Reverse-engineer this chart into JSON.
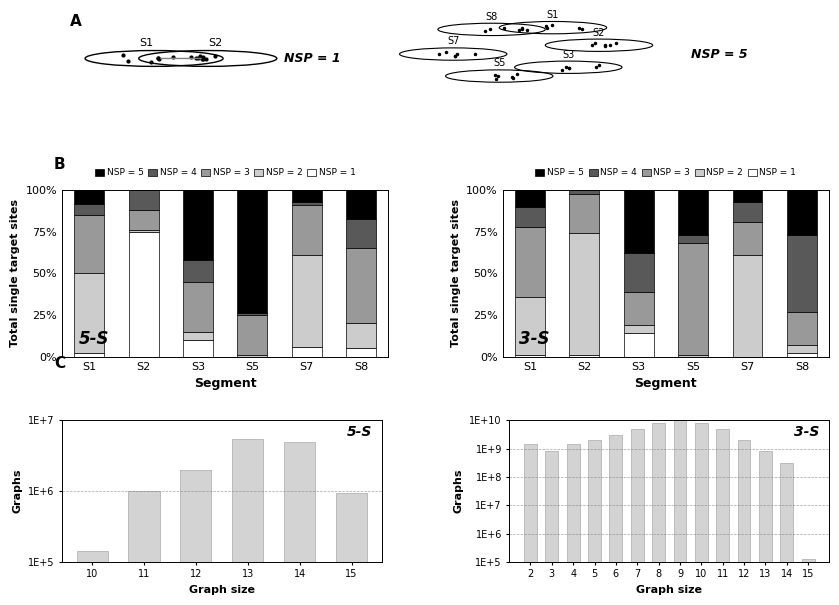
{
  "bar_5s": {
    "segments": [
      "S1",
      "S2",
      "S3",
      "S5",
      "S7",
      "S8"
    ],
    "nsp5": [
      0.08,
      0.0,
      0.42,
      0.74,
      0.07,
      0.17
    ],
    "nsp4": [
      0.07,
      0.12,
      0.13,
      0.01,
      0.02,
      0.18
    ],
    "nsp3": [
      0.35,
      0.12,
      0.3,
      0.24,
      0.3,
      0.45
    ],
    "nsp2": [
      0.48,
      0.01,
      0.05,
      0.01,
      0.55,
      0.15
    ],
    "nsp1": [
      0.02,
      0.75,
      0.1,
      0.0,
      0.06,
      0.05
    ],
    "label": "5-S"
  },
  "bar_3s": {
    "segments": [
      "S1",
      "S2",
      "S3",
      "S5",
      "S7",
      "S8"
    ],
    "nsp5": [
      0.1,
      0.0,
      0.38,
      0.27,
      0.07,
      0.27
    ],
    "nsp4": [
      0.12,
      0.02,
      0.23,
      0.05,
      0.12,
      0.46
    ],
    "nsp3": [
      0.42,
      0.24,
      0.2,
      0.67,
      0.2,
      0.2
    ],
    "nsp2": [
      0.35,
      0.73,
      0.05,
      0.01,
      0.61,
      0.05
    ],
    "nsp1": [
      0.01,
      0.01,
      0.14,
      0.0,
      0.0,
      0.02
    ],
    "label": "3-S"
  },
  "graph_5s": {
    "sizes": [
      10,
      11,
      12,
      13,
      14,
      15
    ],
    "values": [
      140000.0,
      1000000.0,
      2000000.0,
      5500000.0,
      5000000.0,
      950000.0
    ],
    "ylim": [
      100000.0,
      10000000.0
    ],
    "yticks": [
      100000.0,
      1000000.0,
      10000000.0
    ],
    "ytick_labels": [
      "1E+5",
      "1E+6",
      "1E+7"
    ],
    "label": "5-S"
  },
  "graph_3s": {
    "sizes": [
      2,
      3,
      4,
      5,
      6,
      7,
      8,
      9,
      10,
      11,
      12,
      13,
      14,
      15
    ],
    "values": [
      1500000000.0,
      800000000.0,
      1500000000.0,
      2000000000.0,
      3000000000.0,
      5000000000.0,
      8000000000.0,
      10000000000.0,
      8000000000.0,
      5000000000.0,
      2000000000.0,
      800000000.0,
      300000000.0,
      130000.0
    ],
    "ylim": [
      100000.0,
      10000000000.0
    ],
    "yticks": [
      100000.0,
      1000000.0,
      10000000.0,
      100000000.0,
      1000000000.0,
      10000000000.0
    ],
    "ytick_labels": [
      "1E+5",
      "1E+6",
      "1E+7",
      "1E+8",
      "1E+9",
      "1E+10"
    ],
    "label": "3-S"
  },
  "colors": {
    "nsp5": "#000000",
    "nsp4": "#595959",
    "nsp3": "#999999",
    "nsp2": "#cccccc",
    "nsp1": "#ffffff"
  },
  "bar_color": "#d3d3d3",
  "bar_edgecolor": "#aaaaaa"
}
